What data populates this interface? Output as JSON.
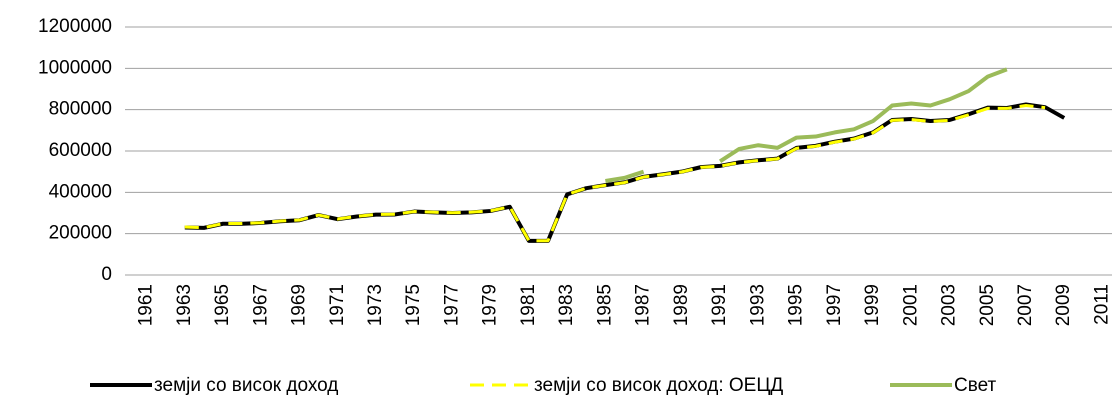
{
  "chart_data": {
    "type": "line",
    "categories": [
      "1961",
      null,
      "1963",
      null,
      "1965",
      null,
      "1967",
      null,
      "1969",
      null,
      "1971",
      null,
      "1973",
      null,
      "1975",
      null,
      "1977",
      null,
      "1979",
      null,
      "1981",
      null,
      "1983",
      null,
      "1985",
      null,
      "1987",
      null,
      "1989",
      null,
      "1991",
      null,
      "1993",
      null,
      "1995",
      null,
      "1997",
      null,
      "1999",
      null,
      "2001",
      null,
      "2003",
      null,
      "2005",
      null,
      "2007",
      null,
      "2009",
      null,
      "2011"
    ],
    "series": [
      {
        "name": "земји со висок доход",
        "color": "#000000",
        "dashed": false,
        "values": [
          null,
          null,
          230000,
          228000,
          248000,
          248000,
          252000,
          260000,
          265000,
          290000,
          270000,
          283000,
          292000,
          293000,
          307000,
          303000,
          300000,
          303000,
          310000,
          330000,
          165000,
          165000,
          390000,
          420000,
          435000,
          448000,
          475000,
          487000,
          500000,
          522000,
          528000,
          545000,
          555000,
          563000,
          615000,
          625000,
          645000,
          660000,
          690000,
          750000,
          755000,
          745000,
          750000,
          778000,
          810000,
          808000,
          825000,
          812000,
          760000,
          null,
          null
        ]
      },
      {
        "name": "земји со висок доход: ОЕЦД",
        "color": "#ffff00",
        "dashed": true,
        "values": [
          null,
          null,
          232000,
          229000,
          249000,
          249000,
          253000,
          261000,
          266000,
          290000,
          271000,
          284000,
          293000,
          294000,
          307000,
          304000,
          301000,
          304000,
          311000,
          330000,
          166000,
          166000,
          390000,
          420000,
          434000,
          447000,
          474000,
          486000,
          499000,
          521000,
          527000,
          544000,
          554000,
          562000,
          613000,
          623000,
          643000,
          658000,
          688000,
          748000,
          752000,
          743000,
          748000,
          775000,
          806000,
          806000,
          820000,
          810000,
          null,
          null,
          null
        ]
      },
      {
        "name": "Свет",
        "color": "#9bbb59",
        "dashed": false,
        "values": [
          null,
          null,
          null,
          null,
          null,
          null,
          null,
          null,
          null,
          null,
          null,
          null,
          null,
          null,
          null,
          null,
          null,
          null,
          null,
          null,
          null,
          null,
          null,
          null,
          455000,
          470000,
          500000,
          null,
          null,
          null,
          550000,
          610000,
          628000,
          615000,
          665000,
          670000,
          690000,
          705000,
          745000,
          820000,
          830000,
          820000,
          850000,
          890000,
          960000,
          995000,
          null,
          null,
          null,
          null,
          null
        ]
      }
    ],
    "ylim": [
      0,
      1200000
    ],
    "yticks": [
      0,
      200000,
      400000,
      600000,
      800000,
      1000000,
      1200000
    ],
    "grid": true
  }
}
